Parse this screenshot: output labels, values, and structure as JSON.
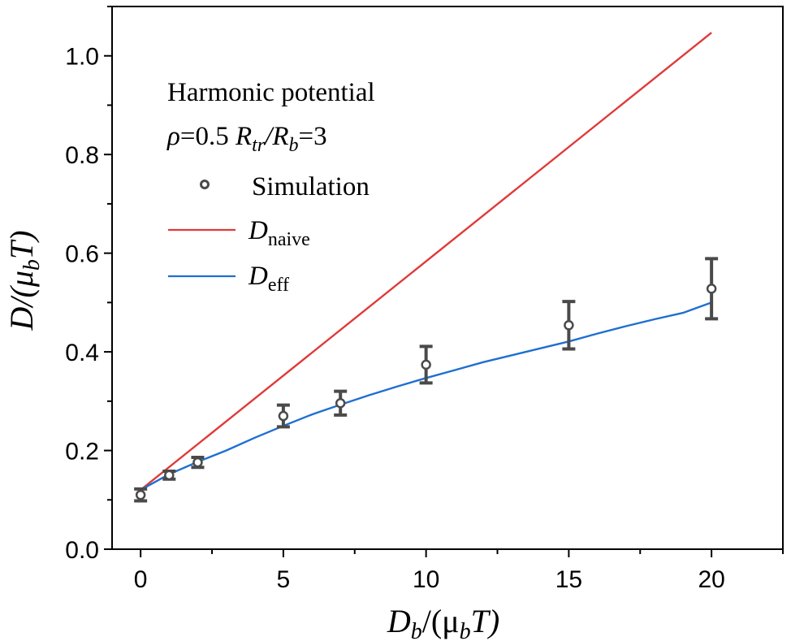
{
  "chart_data": {
    "type": "line",
    "title": "",
    "xlabel": {
      "main": "D",
      "sub": "b",
      "rest": "/(μ",
      "sub2": "b",
      "tail": "T)"
    },
    "ylabel": {
      "main": "D/(μ",
      "sub": "b",
      "tail": "T)"
    },
    "xlim": [
      -1,
      22.5
    ],
    "ylim": [
      0,
      1.1
    ],
    "xticks": [
      0,
      5,
      10,
      15,
      20
    ],
    "xtick_labels": [
      "0",
      "5",
      "10",
      "15",
      "20"
    ],
    "yticks": [
      0.0,
      0.2,
      0.4,
      0.6,
      0.8,
      1.0
    ],
    "ytick_labels": [
      "0.0",
      "0.2",
      "0.4",
      "0.6",
      "0.8",
      "1.0"
    ],
    "annotations": {
      "line1": "Harmonic potential",
      "line2": {
        "rho": "ρ",
        "rho_val": "=0.5 ",
        "R1": "R",
        "R1_sub": "tr",
        "slash": "/",
        "R2": "R",
        "R2_sub": "b",
        "ratio_val": "=3"
      }
    },
    "legend": {
      "position": "top-left",
      "entries": [
        {
          "label": "Simulation",
          "kind": "marker"
        },
        {
          "label": "D",
          "sub": "naive",
          "kind": "line"
        },
        {
          "label": "D",
          "sub": "eff",
          "kind": "line"
        }
      ]
    },
    "series": [
      {
        "name": "Simulation",
        "kind": "scatter_errorbar",
        "color": "#4a4a4a",
        "x": [
          0,
          1,
          2,
          5,
          7,
          10,
          15,
          20
        ],
        "y": [
          0.11,
          0.15,
          0.176,
          0.27,
          0.296,
          0.374,
          0.454,
          0.528
        ],
        "err": [
          0.012,
          0.008,
          0.01,
          0.022,
          0.024,
          0.037,
          0.048,
          0.061
        ]
      },
      {
        "name": "D_naive",
        "kind": "line",
        "color": "#e03a3a",
        "x": [
          0,
          20
        ],
        "y": [
          0.12,
          1.047
        ]
      },
      {
        "name": "D_eff",
        "kind": "line",
        "color": "#1f6fd1",
        "x": [
          0,
          1,
          2,
          3,
          4,
          5,
          6,
          7,
          8,
          9,
          10,
          11,
          12,
          13,
          14,
          15,
          16,
          17,
          18,
          19,
          20
        ],
        "y": [
          0.12,
          0.152,
          0.177,
          0.2,
          0.226,
          0.25,
          0.273,
          0.293,
          0.312,
          0.33,
          0.347,
          0.363,
          0.379,
          0.393,
          0.407,
          0.421,
          0.437,
          0.452,
          0.466,
          0.479,
          0.5
        ]
      }
    ]
  }
}
